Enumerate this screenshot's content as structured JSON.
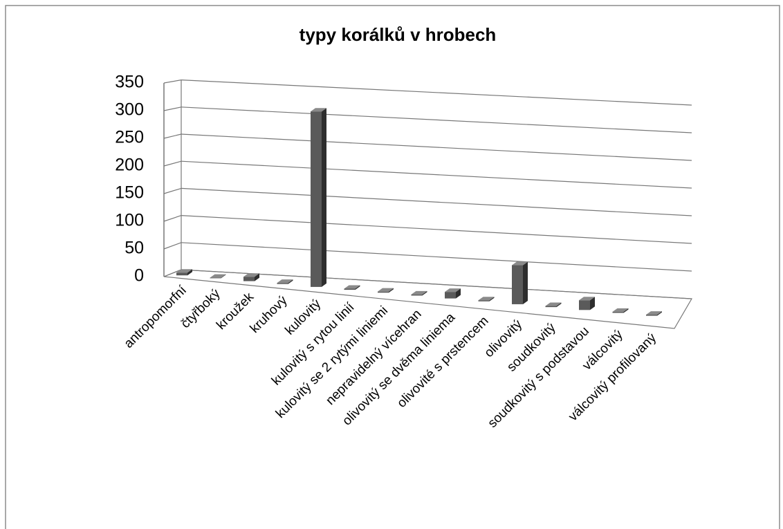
{
  "chart_data": {
    "type": "bar3d",
    "title": "typy korálků v hrobech",
    "categories": [
      "antropomorfní",
      "čtyřboký",
      "kroužek",
      "kruhový",
      "kulovitý",
      "kulovitý s rytou linií",
      "kulovitý se 2 rytými liniemi",
      "nepravidelný vícehran",
      "olivovitý se dvěma liniema",
      "olivovité s prstencem",
      "olivovitý",
      "soudkovitý",
      "soudkovitý s podstavou",
      "válcovitý",
      "válcovitý profilovaný"
    ],
    "values": [
      5,
      1,
      8,
      2,
      320,
      2,
      2,
      2,
      12,
      2,
      72,
      2,
      18,
      2,
      2
    ],
    "color": "#5a5a5a",
    "ylim": [
      0,
      350
    ],
    "yticks": [
      0,
      50,
      100,
      150,
      200,
      250,
      300,
      350
    ],
    "grid": true
  }
}
